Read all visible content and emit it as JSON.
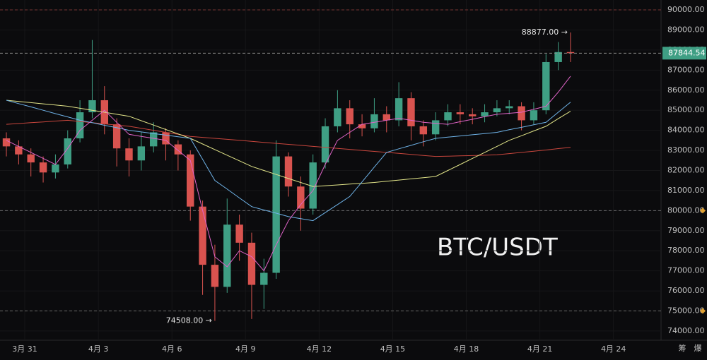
{
  "chart_data": {
    "type": "candlestick",
    "watermark": "BTC/USDT",
    "colors": {
      "up": "#3f9f84",
      "down": "#d9534f",
      "background": "#0b0b0d"
    },
    "x": [
      -0.75,
      -0.25,
      0.25,
      0.75,
      1.25,
      1.75,
      2.25,
      2.75,
      3.25,
      3.75,
      4.25,
      4.75,
      5.25,
      5.75,
      6.25,
      6.75,
      7.25,
      7.75,
      8.25,
      8.75,
      9.25,
      9.75,
      10.25,
      10.75,
      11.25,
      11.75,
      12.25,
      12.75,
      13.25,
      13.75,
      14.25,
      14.75,
      15.25,
      15.75,
      16.25,
      16.75,
      17.25,
      17.75,
      18.25,
      18.75,
      19.25,
      19.75,
      20.25,
      20.75,
      21.25,
      21.75,
      22.25
    ],
    "open": [
      83600,
      83200,
      82800,
      82400,
      81900,
      82300,
      83600,
      84900,
      85500,
      84300,
      83100,
      82500,
      83200,
      83900,
      83300,
      82800,
      80200,
      77300,
      76200,
      79300,
      78400,
      76300,
      76900,
      82700,
      81200,
      80100,
      82400,
      84200,
      85100,
      84300,
      84100,
      84800,
      84500,
      85600,
      84200,
      83800,
      84500,
      84900,
      84800,
      84700,
      84900,
      85100,
      85200,
      84500,
      85000,
      87400,
      87900
    ],
    "high": [
      83900,
      83500,
      83100,
      82700,
      82800,
      84000,
      85500,
      88500,
      86200,
      84600,
      83600,
      83900,
      84400,
      84100,
      83500,
      83000,
      80500,
      78300,
      80600,
      79800,
      78900,
      77600,
      83500,
      82900,
      81700,
      82800,
      84600,
      86000,
      85500,
      84800,
      85600,
      85200,
      86400,
      85900,
      84500,
      84900,
      85300,
      85300,
      85100,
      85300,
      85500,
      85500,
      85400,
      85400,
      87800,
      88400,
      88877
    ],
    "low": [
      82700,
      82300,
      81700,
      81400,
      81600,
      82100,
      83400,
      84600,
      83800,
      82200,
      81700,
      82000,
      82900,
      82500,
      82000,
      79500,
      75800,
      74508,
      75900,
      77500,
      74600,
      75100,
      76600,
      80700,
      79000,
      79800,
      82100,
      83900,
      83600,
      83700,
      83900,
      83900,
      84200,
      83500,
      83200,
      83500,
      84200,
      84300,
      84300,
      84400,
      84700,
      84800,
      84000,
      84300,
      84800,
      87000,
      87400
    ],
    "close": [
      83200,
      82800,
      82400,
      81900,
      82300,
      83600,
      84900,
      85500,
      84300,
      83100,
      82500,
      83200,
      83900,
      83300,
      82800,
      80200,
      77300,
      76200,
      79300,
      78400,
      76300,
      76900,
      82700,
      81200,
      80100,
      82400,
      84200,
      85100,
      84300,
      84100,
      84800,
      84500,
      85600,
      84200,
      83800,
      84500,
      84900,
      84800,
      84700,
      84900,
      85100,
      85200,
      84500,
      85000,
      87400,
      87900,
      87844.54
    ],
    "lines": [
      {
        "color": "#c9463d",
        "values": [
          84300,
          84340,
          84380,
          84420,
          84460,
          84500,
          84440,
          84380,
          84320,
          84260,
          84200,
          84100,
          84000,
          83900,
          83800,
          83700,
          83650,
          83600,
          83550,
          83500,
          83450,
          83400,
          83350,
          83300,
          83250,
          83200,
          83150,
          83100,
          83050,
          83000,
          82950,
          82900,
          82850,
          82800,
          82750,
          82700,
          82710,
          82730,
          82740,
          82760,
          82780,
          82840,
          82900,
          82960,
          83020,
          83090,
          83150
        ]
      },
      {
        "color": "#e3e68a",
        "values": [
          85500,
          85440,
          85380,
          85320,
          85260,
          85200,
          85100,
          85000,
          84900,
          84800,
          84700,
          84480,
          84260,
          84040,
          83820,
          83600,
          83320,
          83040,
          82760,
          82480,
          82200,
          82000,
          81800,
          81600,
          81400,
          81200,
          81240,
          81280,
          81320,
          81360,
          81400,
          81460,
          81520,
          81580,
          81640,
          81700,
          82000,
          82300,
          82600,
          82900,
          83200,
          83500,
          83730,
          83970,
          84200,
          84580,
          84950
        ]
      },
      {
        "color": "#6fb3e8",
        "values": [
          85500,
          85330,
          85170,
          85000,
          84830,
          84670,
          84500,
          84380,
          84250,
          84130,
          84000,
          83920,
          83840,
          83760,
          83680,
          83600,
          82550,
          81500,
          81070,
          80630,
          80200,
          80030,
          79870,
          79700,
          79600,
          79500,
          79900,
          80300,
          80700,
          81430,
          82170,
          82900,
          83080,
          83250,
          83430,
          83600,
          83660,
          83720,
          83780,
          83840,
          83900,
          84030,
          84150,
          84280,
          84400,
          84900,
          85400
        ]
      },
      {
        "color": "#e064c8",
        "values": [
          83500,
          83200,
          82900,
          82600,
          82300,
          83100,
          84000,
          84500,
          85000,
          84400,
          83800,
          83700,
          83600,
          83500,
          83000,
          82500,
          80000,
          77700,
          77200,
          78000,
          77700,
          77000,
          78300,
          79500,
          80300,
          81000,
          82300,
          83500,
          83900,
          84300,
          84400,
          84500,
          84600,
          84500,
          84400,
          84350,
          84300,
          84430,
          84550,
          84680,
          84800,
          84850,
          84900,
          85050,
          85200,
          85900,
          86700
        ]
      }
    ],
    "xlim": [
      -1.01,
      25.94
    ],
    "xticks": [
      {
        "value": 0,
        "label": "3月 31"
      },
      {
        "value": 3,
        "label": "4月 3"
      },
      {
        "value": 6,
        "label": "4月 6"
      },
      {
        "value": 9,
        "label": "4月 9"
      },
      {
        "value": 12,
        "label": "4月 12"
      },
      {
        "value": 15,
        "label": "4月 15"
      },
      {
        "value": 18,
        "label": "4月 18"
      },
      {
        "value": 21,
        "label": "4月 21"
      },
      {
        "value": 24,
        "label": "4月 24"
      }
    ],
    "ylim": [
      73540,
      90494
    ],
    "yticks": [
      {
        "value": 74000,
        "label": "74000.00"
      },
      {
        "value": 75000,
        "label": "75000.00"
      },
      {
        "value": 76000,
        "label": "76000.00"
      },
      {
        "value": 77000,
        "label": "77000.00"
      },
      {
        "value": 78000,
        "label": "78000.00"
      },
      {
        "value": 79000,
        "label": "79000.00"
      },
      {
        "value": 80000,
        "label": "80000.00"
      },
      {
        "value": 81000,
        "label": "81000.00"
      },
      {
        "value": 82000,
        "label": "82000.00"
      },
      {
        "value": 83000,
        "label": "83000.00"
      },
      {
        "value": 84000,
        "label": "84000.00"
      },
      {
        "value": 85000,
        "label": "85000.00"
      },
      {
        "value": 86000,
        "label": "86000.00"
      },
      {
        "value": 87000,
        "label": "87000.00"
      },
      {
        "value": 88000,
        "label": "88000.00"
      },
      {
        "value": 89000,
        "label": "89000.00"
      },
      {
        "value": 90000,
        "label": "90000.00"
      }
    ],
    "levels": [
      {
        "value": 90000,
        "color": "#7a3434"
      },
      {
        "value": 80000,
        "color": "#6a6a6a"
      },
      {
        "value": 75000,
        "color": "#6a6a6a"
      }
    ],
    "last_price": 87844.54,
    "annotations": [
      {
        "text": "88877.00 →",
        "x": 22.25,
        "y": 88877
      },
      {
        "text": "74508.00 →",
        "x": 7.75,
        "y": 74508
      }
    ],
    "footer_labels": [
      "筹",
      "爆"
    ]
  }
}
